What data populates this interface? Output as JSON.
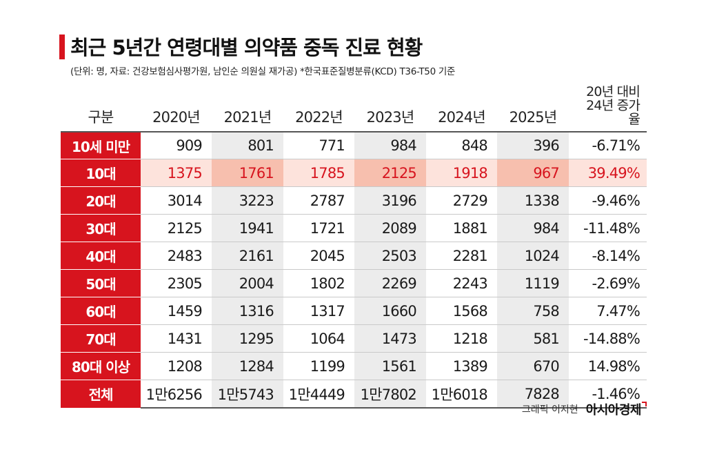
{
  "header": {
    "title": "최근 5년간 연령대별 의약품 중독 진료 현황",
    "subtitle": "(단위: 명, 자료: 건강보험심사평가원, 남인순 의원실 재가공) *한국표준질병분류(KCD) T36-T50 기준"
  },
  "colors": {
    "accent": "#d7141e",
    "highlight_row": "#fde3dc",
    "highlight_shaded": "#f7bfae",
    "shaded_column": "#ececec"
  },
  "chart_data": {
    "type": "table",
    "columns": [
      "구분",
      "2020년",
      "2021년",
      "2022년",
      "2023년",
      "2024년",
      "2025년",
      "20년 대비 24년 증가율"
    ],
    "rows": [
      {
        "label": "10세 미만",
        "values": [
          "909",
          "801",
          "771",
          "984",
          "848",
          "396"
        ],
        "rate": "-6.71%",
        "highlight": false
      },
      {
        "label": "10대",
        "values": [
          "1375",
          "1761",
          "1785",
          "2125",
          "1918",
          "967"
        ],
        "rate": "39.49%",
        "highlight": true
      },
      {
        "label": "20대",
        "values": [
          "3014",
          "3223",
          "2787",
          "3196",
          "2729",
          "1338"
        ],
        "rate": "-9.46%",
        "highlight": false
      },
      {
        "label": "30대",
        "values": [
          "2125",
          "1941",
          "1721",
          "2089",
          "1881",
          "984"
        ],
        "rate": "-11.48%",
        "highlight": false
      },
      {
        "label": "40대",
        "values": [
          "2483",
          "2161",
          "2045",
          "2503",
          "2281",
          "1024"
        ],
        "rate": "-8.14%",
        "highlight": false
      },
      {
        "label": "50대",
        "values": [
          "2305",
          "2004",
          "1802",
          "2269",
          "2243",
          "1119"
        ],
        "rate": "-2.69%",
        "highlight": false
      },
      {
        "label": "60대",
        "values": [
          "1459",
          "1316",
          "1317",
          "1660",
          "1568",
          "758"
        ],
        "rate": "7.47%",
        "highlight": false
      },
      {
        "label": "70대",
        "values": [
          "1431",
          "1295",
          "1064",
          "1473",
          "1218",
          "581"
        ],
        "rate": "-14.88%",
        "highlight": false
      },
      {
        "label": "80대 이상",
        "values": [
          "1208",
          "1284",
          "1199",
          "1561",
          "1389",
          "670"
        ],
        "rate": "14.98%",
        "highlight": false
      },
      {
        "label": "전체",
        "values": [
          "1만6256",
          "1만5743",
          "1만4449",
          "1만7802",
          "1만6018",
          "7828"
        ],
        "rate": "-1.46%",
        "highlight": false
      }
    ]
  },
  "footer": {
    "credit": "그래픽 이지현",
    "brand": "아시아경제"
  }
}
